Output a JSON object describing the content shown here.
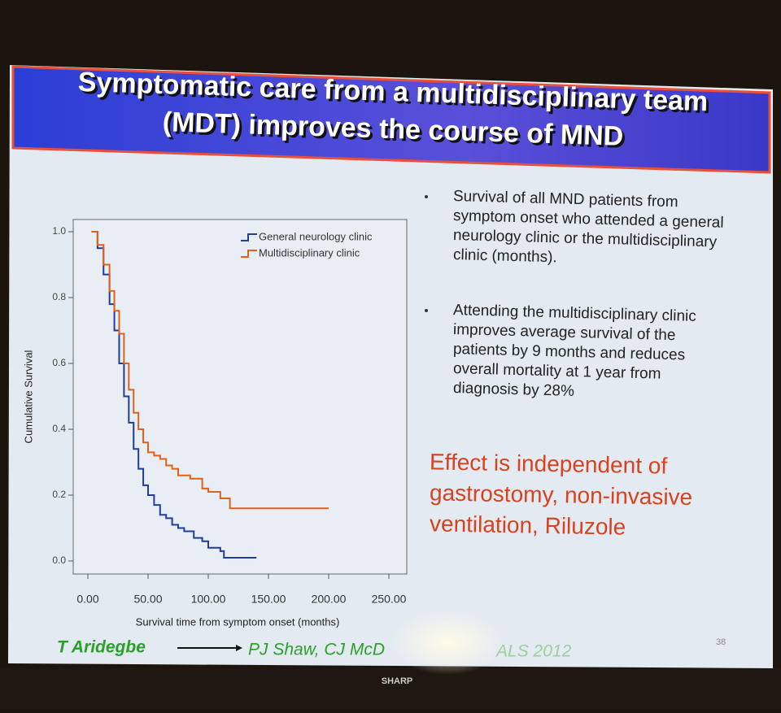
{
  "title_lines": [
    "Symptomatic care from a multidisciplinary team",
    "(MDT) improves the course of MND"
  ],
  "bullets": [
    [
      "Survival of all MND patients from",
      "symptom onset who attended a general",
      "neurology clinic or the multidisciplinary",
      "clinic (months)."
    ],
    [
      "Attending the multidisciplinary clinic",
      "improves average survival of the",
      "patients by 9 months and reduces",
      "overall mortality at 1 year from",
      "diagnosis by 28%"
    ]
  ],
  "highlight_lines": [
    "Effect is independent of",
    "gastrostomy, non-invasive",
    "ventilation, Riluzole"
  ],
  "footer": {
    "left": "T Aridegbe",
    "right": "PJ Shaw, CJ McD",
    "journal": "ALS 2012",
    "page": "38"
  },
  "projector": "SHARP",
  "chart_data": {
    "type": "step",
    "xlabel": "Survival time from symptom onset (months)",
    "ylabel": "Cumulative Survival",
    "xlim": [
      0,
      250
    ],
    "ylim": [
      0,
      1
    ],
    "xticks": [
      {
        "value": 0,
        "label": "0.00"
      },
      {
        "value": 50,
        "label": "50.00"
      },
      {
        "value": 100,
        "label": "100.00"
      },
      {
        "value": 150,
        "label": "150.00"
      },
      {
        "value": 200,
        "label": "200.00"
      },
      {
        "value": 250,
        "label": "250.00"
      }
    ],
    "yticks": [
      {
        "value": 0,
        "label": "0.0"
      },
      0.2,
      0.4,
      0.6,
      0.8,
      {
        "value": 1,
        "label": "1.0"
      }
    ],
    "legend": "upper right",
    "series": [
      {
        "name": "General neurology clinic",
        "color": "#1f3d9a",
        "x": [
          3,
          8,
          13,
          18,
          22,
          26,
          30,
          34,
          38,
          42,
          46,
          50,
          55,
          60,
          65,
          70,
          75,
          80,
          88,
          95,
          100,
          110,
          113,
          140
        ],
        "values": [
          1.0,
          0.95,
          0.87,
          0.78,
          0.7,
          0.6,
          0.5,
          0.42,
          0.34,
          0.28,
          0.23,
          0.2,
          0.17,
          0.14,
          0.13,
          0.11,
          0.1,
          0.09,
          0.07,
          0.06,
          0.04,
          0.03,
          0.01,
          0.01
        ]
      },
      {
        "name": "Multidisciplinary clinic",
        "color": "#e0601c",
        "x": [
          3,
          8,
          13,
          18,
          22,
          26,
          30,
          34,
          38,
          42,
          46,
          50,
          55,
          60,
          65,
          70,
          75,
          85,
          95,
          100,
          110,
          118,
          150,
          200
        ],
        "values": [
          1.0,
          0.96,
          0.9,
          0.82,
          0.76,
          0.69,
          0.6,
          0.52,
          0.45,
          0.4,
          0.36,
          0.33,
          0.32,
          0.31,
          0.29,
          0.28,
          0.26,
          0.25,
          0.22,
          0.21,
          0.19,
          0.16,
          0.16,
          0.16
        ]
      }
    ]
  }
}
